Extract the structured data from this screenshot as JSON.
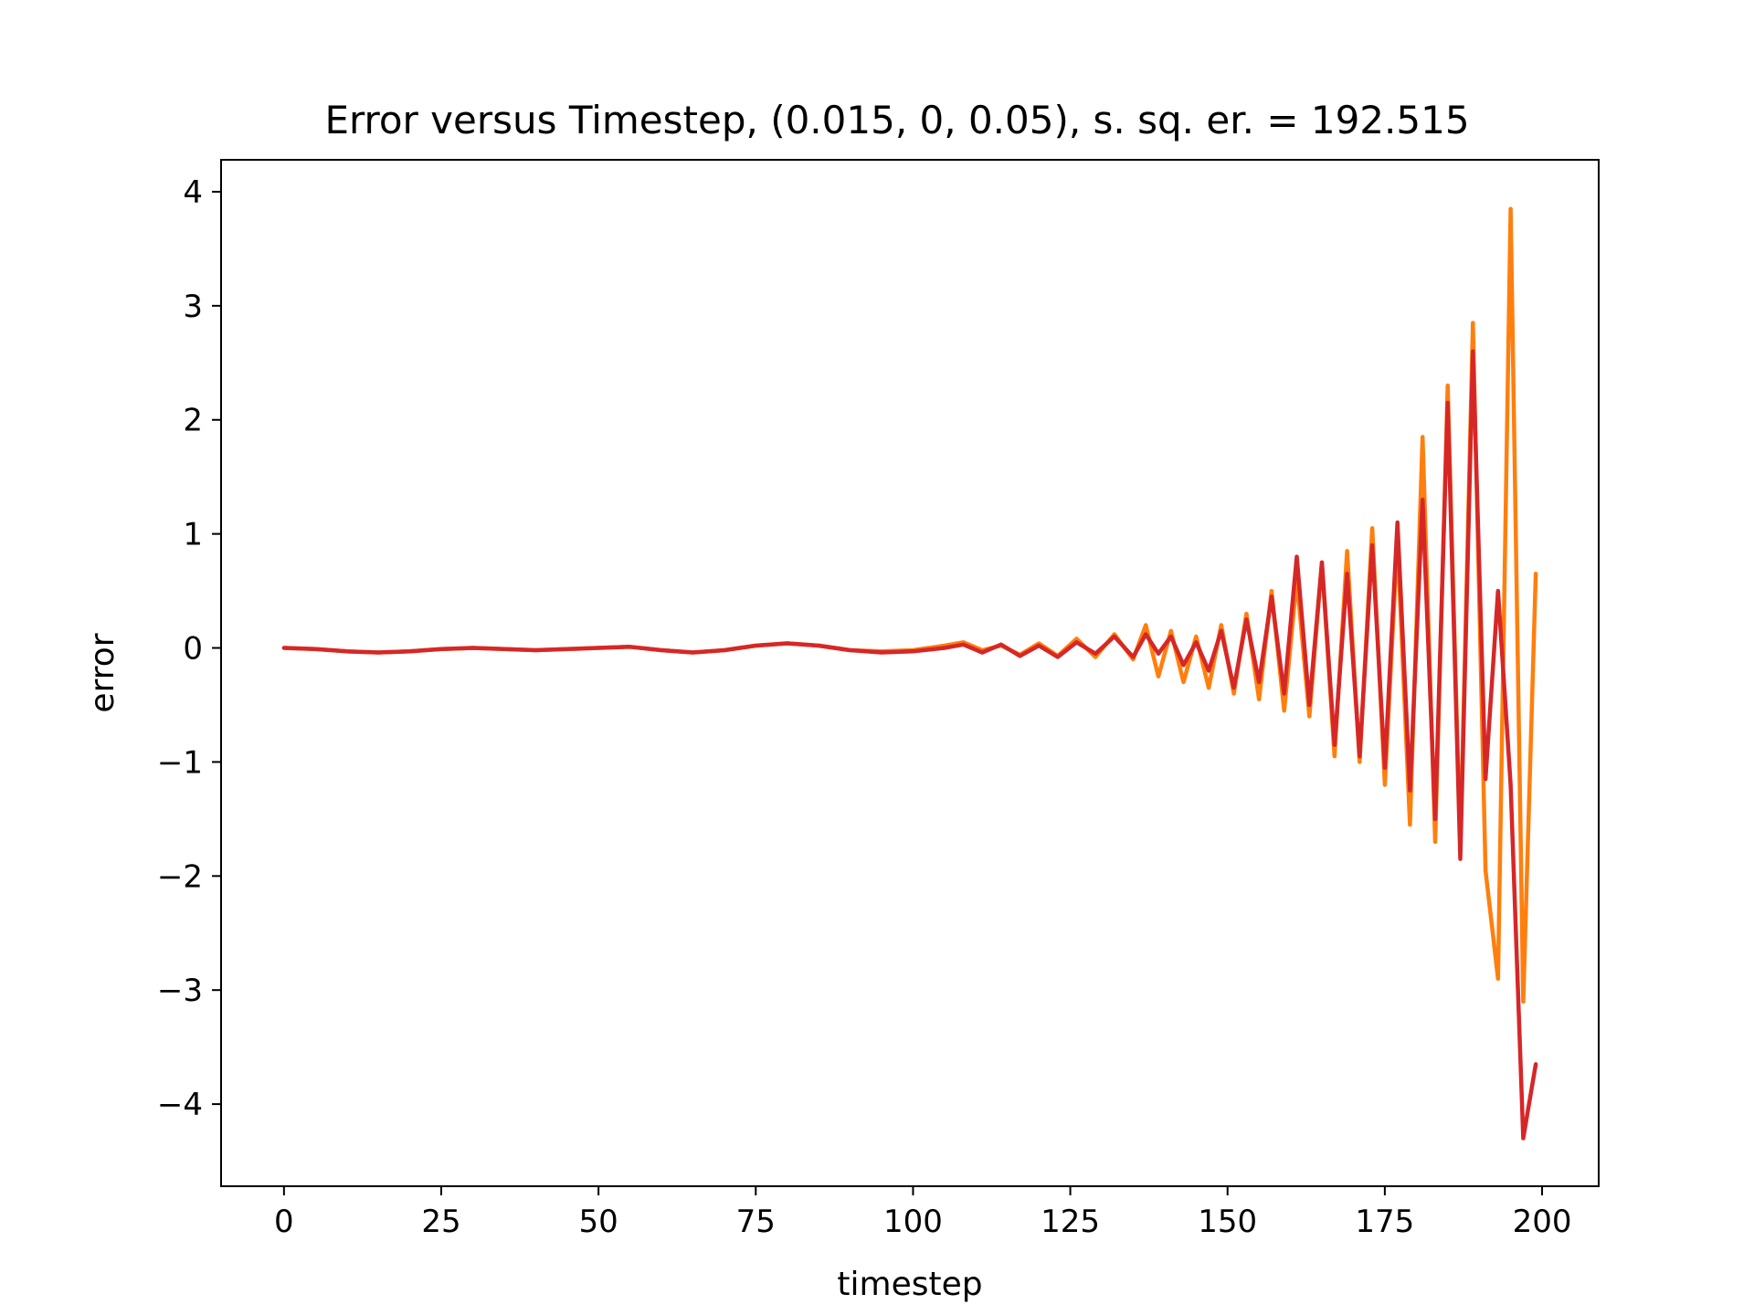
{
  "chart_data": {
    "type": "line",
    "title": "Error versus Timestep, (0.015, 0, 0.05), s. sq. er. = 192.515",
    "xlabel": "timestep",
    "ylabel": "error",
    "xlim": [
      -10,
      209
    ],
    "ylim": [
      -4.72,
      4.28
    ],
    "grid": false,
    "x_ticks": [
      0,
      25,
      50,
      75,
      100,
      125,
      150,
      175,
      200
    ],
    "x_tick_labels": [
      "0",
      "25",
      "50",
      "75",
      "100",
      "125",
      "150",
      "175",
      "200"
    ],
    "y_ticks": [
      4,
      3,
      2,
      1,
      0,
      -1,
      -2,
      -3,
      -4
    ],
    "y_tick_labels": [
      "4",
      "3",
      "2",
      "1",
      "0",
      "−1",
      "−2",
      "−3",
      "−4"
    ],
    "series": [
      {
        "color": "#ff7f0e",
        "x": [
          0,
          5,
          10,
          15,
          20,
          25,
          30,
          35,
          40,
          45,
          50,
          55,
          60,
          65,
          70,
          75,
          80,
          85,
          90,
          95,
          100,
          105,
          108,
          111,
          114,
          117,
          120,
          123,
          126,
          129,
          132,
          135,
          137,
          139,
          141,
          143,
          145,
          147,
          149,
          151,
          153,
          155,
          157,
          159,
          161,
          163,
          165,
          167,
          169,
          171,
          173,
          175,
          177,
          179,
          181,
          183,
          185,
          187,
          189,
          191,
          193,
          195,
          197,
          199
        ],
        "y": [
          0.0,
          -0.01,
          -0.03,
          -0.04,
          -0.03,
          -0.01,
          0.0,
          -0.01,
          -0.02,
          -0.01,
          0.0,
          0.01,
          -0.02,
          -0.04,
          -0.02,
          0.02,
          0.04,
          0.02,
          -0.02,
          -0.03,
          -0.02,
          0.02,
          0.05,
          -0.02,
          0.02,
          -0.06,
          0.04,
          -0.07,
          0.08,
          -0.08,
          0.12,
          -0.1,
          0.2,
          -0.25,
          0.15,
          -0.3,
          0.1,
          -0.35,
          0.2,
          -0.4,
          0.3,
          -0.45,
          0.5,
          -0.55,
          0.6,
          -0.6,
          0.75,
          -0.95,
          0.85,
          -1.0,
          1.05,
          -1.2,
          0.95,
          -1.55,
          1.85,
          -1.7,
          2.3,
          -1.75,
          2.85,
          -1.95,
          -2.9,
          3.85,
          -3.1,
          0.65
        ]
      },
      {
        "color": "#d62728",
        "x": [
          0,
          5,
          10,
          15,
          20,
          25,
          30,
          35,
          40,
          45,
          50,
          55,
          60,
          65,
          70,
          75,
          80,
          85,
          90,
          95,
          100,
          105,
          108,
          111,
          114,
          117,
          120,
          123,
          126,
          129,
          132,
          135,
          137,
          139,
          141,
          143,
          145,
          147,
          149,
          151,
          153,
          155,
          157,
          159,
          161,
          163,
          165,
          167,
          169,
          171,
          173,
          175,
          177,
          179,
          181,
          183,
          185,
          187,
          189,
          191,
          193,
          195,
          197,
          199
        ],
        "y": [
          0.0,
          -0.01,
          -0.03,
          -0.04,
          -0.03,
          -0.01,
          0.0,
          -0.01,
          -0.02,
          -0.01,
          0.0,
          0.01,
          -0.02,
          -0.04,
          -0.02,
          0.02,
          0.04,
          0.02,
          -0.02,
          -0.04,
          -0.03,
          0.0,
          0.03,
          -0.04,
          0.03,
          -0.07,
          0.02,
          -0.08,
          0.05,
          -0.05,
          0.1,
          -0.08,
          0.12,
          -0.05,
          0.1,
          -0.15,
          0.05,
          -0.2,
          0.15,
          -0.35,
          0.25,
          -0.3,
          0.45,
          -0.4,
          0.8,
          -0.5,
          0.75,
          -0.85,
          0.65,
          -0.95,
          0.9,
          -1.05,
          1.1,
          -1.25,
          1.3,
          -1.5,
          2.15,
          -1.85,
          2.6,
          -1.15,
          0.5,
          -1.2,
          -4.3,
          -3.65
        ]
      }
    ]
  }
}
